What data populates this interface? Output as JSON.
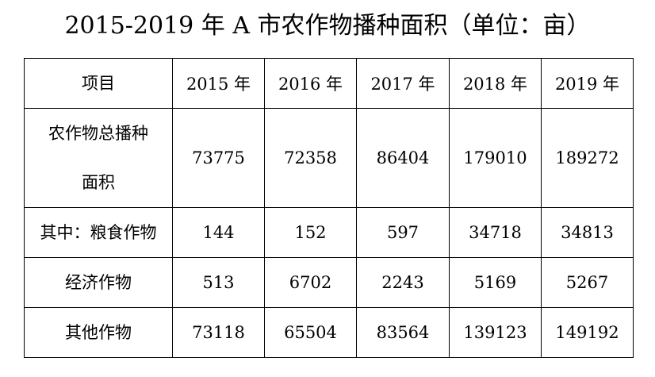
{
  "title": "2015-2019 年 A 市农作物播种面积（单位：亩）",
  "chart_data": {
    "type": "table",
    "title": "2015-2019 年 A 市农作物播种面积（单位：亩）",
    "columns": [
      "项目",
      "2015 年",
      "2016 年",
      "2017 年",
      "2018 年",
      "2019 年"
    ],
    "rows": [
      {
        "label": "农作物总播种面积",
        "label_lines": [
          "农作物总播种",
          "面积"
        ],
        "values": [
          "73775",
          "72358",
          "86404",
          "179010",
          "189272"
        ]
      },
      {
        "label": "其中：粮食作物",
        "values": [
          "144",
          "152",
          "597",
          "34718",
          "34813"
        ]
      },
      {
        "label": "经济作物",
        "values": [
          "513",
          "6702",
          "2243",
          "5169",
          "5267"
        ]
      },
      {
        "label": "其他作物",
        "values": [
          "73118",
          "65504",
          "83564",
          "139123",
          "149192"
        ]
      }
    ]
  }
}
